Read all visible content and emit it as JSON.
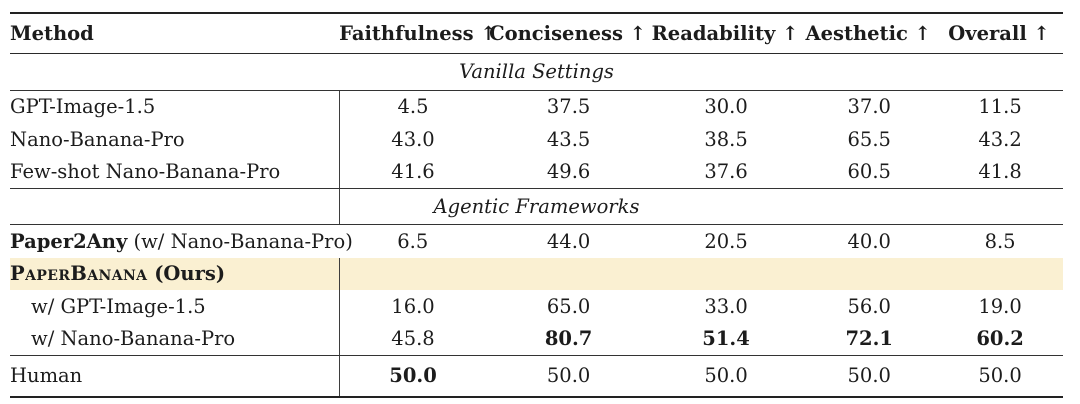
{
  "page": {
    "background": "#ffffff",
    "text_color": "#1c1c1c",
    "highlight_color": "#faf0d2",
    "rule_color": "#222222"
  },
  "table": {
    "header": {
      "method": "Method",
      "metrics": [
        "Faithfulness ↑",
        "Conciseness ↑",
        "Readability ↑",
        "Aesthetic ↑",
        "Overall ↑"
      ]
    },
    "rows": [
      {
        "kind": "section",
        "label": "Vanilla Settings",
        "vline": false,
        "rule_below": true
      },
      {
        "kind": "data",
        "name_parts": [
          {
            "t": "GPT-Image-1.5"
          }
        ],
        "values": [
          {
            "v": "4.5"
          },
          {
            "v": "37.5"
          },
          {
            "v": "30.0"
          },
          {
            "v": "37.0"
          },
          {
            "v": "11.5"
          }
        ],
        "vline": true
      },
      {
        "kind": "data",
        "name_parts": [
          {
            "t": "Nano-Banana-Pro"
          }
        ],
        "values": [
          {
            "v": "43.0"
          },
          {
            "v": "43.5"
          },
          {
            "v": "38.5"
          },
          {
            "v": "65.5"
          },
          {
            "v": "43.2"
          }
        ],
        "vline": true
      },
      {
        "kind": "data",
        "name_parts": [
          {
            "t": "Few-shot Nano-Banana-Pro"
          }
        ],
        "values": [
          {
            "v": "41.6"
          },
          {
            "v": "49.6"
          },
          {
            "v": "37.6"
          },
          {
            "v": "60.5"
          },
          {
            "v": "41.8"
          }
        ],
        "vline": true,
        "rule_below": true
      },
      {
        "kind": "section",
        "label": "Agentic Frameworks",
        "vline": true,
        "rule_below": true
      },
      {
        "kind": "data",
        "name_parts": [
          {
            "t": "Paper2Any",
            "b": true
          },
          {
            "t": " (w/ Nano-Banana-Pro)"
          }
        ],
        "values": [
          {
            "v": "6.5"
          },
          {
            "v": "44.0"
          },
          {
            "v": "20.5"
          },
          {
            "v": "40.0"
          },
          {
            "v": "8.5"
          }
        ],
        "vline": false
      },
      {
        "kind": "data",
        "highlight": true,
        "name_parts": [
          {
            "t": "PaperBanana",
            "b": true,
            "sc": true
          },
          {
            "t": " (Ours)",
            "b": true
          }
        ],
        "values": [
          {
            "v": ""
          },
          {
            "v": ""
          },
          {
            "v": ""
          },
          {
            "v": ""
          },
          {
            "v": ""
          }
        ],
        "vline": true
      },
      {
        "kind": "data",
        "indent": true,
        "name_parts": [
          {
            "t": "w/ GPT-Image-1.5"
          }
        ],
        "values": [
          {
            "v": "16.0"
          },
          {
            "v": "65.0"
          },
          {
            "v": "33.0"
          },
          {
            "v": "56.0"
          },
          {
            "v": "19.0"
          }
        ],
        "vline": true
      },
      {
        "kind": "data",
        "indent": true,
        "name_parts": [
          {
            "t": "w/ Nano-Banana-Pro"
          }
        ],
        "values": [
          {
            "v": "45.8"
          },
          {
            "v": "80.7",
            "b": true
          },
          {
            "v": "51.4",
            "b": true
          },
          {
            "v": "72.1",
            "b": true
          },
          {
            "v": "60.2",
            "b": true
          }
        ],
        "vline": true,
        "rule_below": true
      },
      {
        "kind": "data",
        "tall": true,
        "name_parts": [
          {
            "t": "Human"
          }
        ],
        "values": [
          {
            "v": "50.0",
            "b": true
          },
          {
            "v": "50.0"
          },
          {
            "v": "50.0"
          },
          {
            "v": "50.0"
          },
          {
            "v": "50.0"
          }
        ],
        "vline": true
      }
    ]
  }
}
